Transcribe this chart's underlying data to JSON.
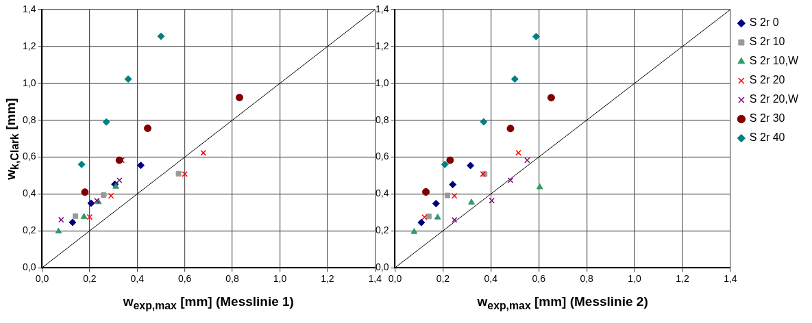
{
  "chart_data": [
    {
      "type": "scatter",
      "xlabel": "w$_{exp,max}$ [mm] (Messlinie 1)",
      "ylabel": "w$_{k,Clark}$ [mm]",
      "xlim": [
        0,
        1.4
      ],
      "ylim": [
        0,
        1.4
      ],
      "xticks": [
        {
          "value": 0,
          "label": "0,0"
        },
        {
          "value": 0.2,
          "label": "0,2"
        },
        {
          "value": 0.4,
          "label": "0,4"
        },
        {
          "value": 0.6,
          "label": "0,6"
        },
        {
          "value": 0.8,
          "label": "0,8"
        },
        {
          "value": 1,
          "label": "1,0"
        },
        {
          "value": 1.2,
          "label": "1,2"
        },
        {
          "value": 1.4,
          "label": "1,4"
        }
      ],
      "yticks": [
        {
          "value": 0,
          "label": "0,0"
        },
        {
          "value": 0.2,
          "label": "0,2"
        },
        {
          "value": 0.4,
          "label": "0,4"
        },
        {
          "value": 0.6,
          "label": "0,6"
        },
        {
          "value": 0.8,
          "label": "0,8"
        },
        {
          "value": 1,
          "label": "1,0"
        },
        {
          "value": 1.2,
          "label": "1,2"
        },
        {
          "value": 1.4,
          "label": "1,4"
        }
      ],
      "grid": true,
      "legend": false,
      "series": [
        {
          "type": "line",
          "color": "#000000",
          "marker": "none",
          "x": [
            0,
            1.4
          ],
          "values": [
            0,
            1.4
          ]
        },
        {
          "color": "#000080",
          "marker": "diamond",
          "x": [
            0.415,
            0.306,
            0.206,
            0.128
          ],
          "values": [
            0.555,
            0.453,
            0.35,
            0.246
          ]
        },
        {
          "color": "#999999",
          "marker": "square",
          "x": [
            0.574,
            0.259,
            0.14
          ],
          "values": [
            0.51,
            0.394,
            0.28
          ]
        },
        {
          "color": "#339966",
          "marker": "triangle",
          "x": [
            0.31,
            0.237,
            0.176,
            0.069
          ],
          "values": [
            0.44,
            0.356,
            0.276,
            0.197
          ]
        },
        {
          "color": "#ff0000",
          "marker": "cross",
          "x": [
            0.678,
            0.6,
            0.29,
            0.2
          ],
          "values": [
            0.623,
            0.508,
            0.39,
            0.275
          ]
        },
        {
          "color": "#800080",
          "marker": "cross",
          "x": [
            0.335,
            0.325,
            0.23,
            0.08
          ],
          "values": [
            0.583,
            0.474,
            0.364,
            0.26
          ]
        },
        {
          "color": "#800000",
          "marker": "circle",
          "x": [
            0.83,
            0.444,
            0.325,
            0.18
          ],
          "values": [
            0.923,
            0.756,
            0.583,
            0.41
          ]
        },
        {
          "color": "#008080",
          "marker": "diamond",
          "x": [
            0.5,
            0.362,
            0.27,
            0.166
          ],
          "values": [
            1.255,
            1.023,
            0.79,
            0.56
          ]
        }
      ]
    },
    {
      "type": "scatter",
      "xlabel": "w$_{exp,max}$ [mm] (Messlinie 2)",
      "xlim": [
        0,
        1.4
      ],
      "ylim": [
        0,
        1.4
      ],
      "xticks": [
        {
          "value": 0,
          "label": "0,0"
        },
        {
          "value": 0.2,
          "label": "0,2"
        },
        {
          "value": 0.4,
          "label": "0,4"
        },
        {
          "value": 0.6,
          "label": "0,6"
        },
        {
          "value": 0.8,
          "label": "0,8"
        },
        {
          "value": 1,
          "label": "1,0"
        },
        {
          "value": 1.2,
          "label": "1,2"
        },
        {
          "value": 1.4,
          "label": "1,4"
        }
      ],
      "yticks": [
        {
          "value": 0,
          "label": "0,0"
        },
        {
          "value": 0.2,
          "label": "0,2"
        },
        {
          "value": 0.4,
          "label": "0,4"
        },
        {
          "value": 0.6,
          "label": "0,6"
        },
        {
          "value": 0.8,
          "label": "0,8"
        },
        {
          "value": 1,
          "label": "1,0"
        },
        {
          "value": 1.2,
          "label": "1,2"
        },
        {
          "value": 1.4,
          "label": "1,4"
        }
      ],
      "grid": true,
      "legend": "top right",
      "series": [
        {
          "type": "line",
          "color": "#000000",
          "marker": "none",
          "x": [
            0,
            1.4
          ],
          "values": [
            0,
            1.4
          ]
        },
        {
          "name": "S 2r 0",
          "color": "#000080",
          "marker": "diamond",
          "x": [
            0.315,
            0.241,
            0.171,
            0.11
          ],
          "values": [
            0.554,
            0.451,
            0.348,
            0.245
          ]
        },
        {
          "name": "S 2r 10",
          "color": "#999999",
          "marker": "square",
          "x": [
            0.374,
            0.219,
            0.141
          ],
          "values": [
            0.508,
            0.392,
            0.278
          ]
        },
        {
          "name": "S 2r 10,W",
          "color": "#339966",
          "marker": "triangle",
          "x": [
            0.604,
            0.319,
            0.178,
            0.08
          ],
          "values": [
            0.437,
            0.354,
            0.273,
            0.195
          ]
        },
        {
          "name": "S 2r 20",
          "color": "#ff0000",
          "marker": "cross",
          "x": [
            0.515,
            0.367,
            0.248,
            0.123
          ],
          "values": [
            0.623,
            0.508,
            0.39,
            0.274
          ]
        },
        {
          "name": "S 2r 20,W",
          "color": "#800080",
          "marker": "cross",
          "x": [
            0.552,
            0.482,
            0.404,
            0.248
          ],
          "values": [
            0.583,
            0.474,
            0.364,
            0.259
          ]
        },
        {
          "name": "S 2r 30",
          "color": "#800000",
          "marker": "circle",
          "x": [
            0.652,
            0.482,
            0.23,
            0.129
          ],
          "values": [
            0.922,
            0.755,
            0.583,
            0.411
          ]
        },
        {
          "name": "S 2r 40",
          "color": "#008080",
          "marker": "diamond",
          "x": [
            0.589,
            0.5,
            0.37,
            0.208
          ],
          "values": [
            1.254,
            1.023,
            0.791,
            0.56
          ]
        }
      ]
    }
  ]
}
